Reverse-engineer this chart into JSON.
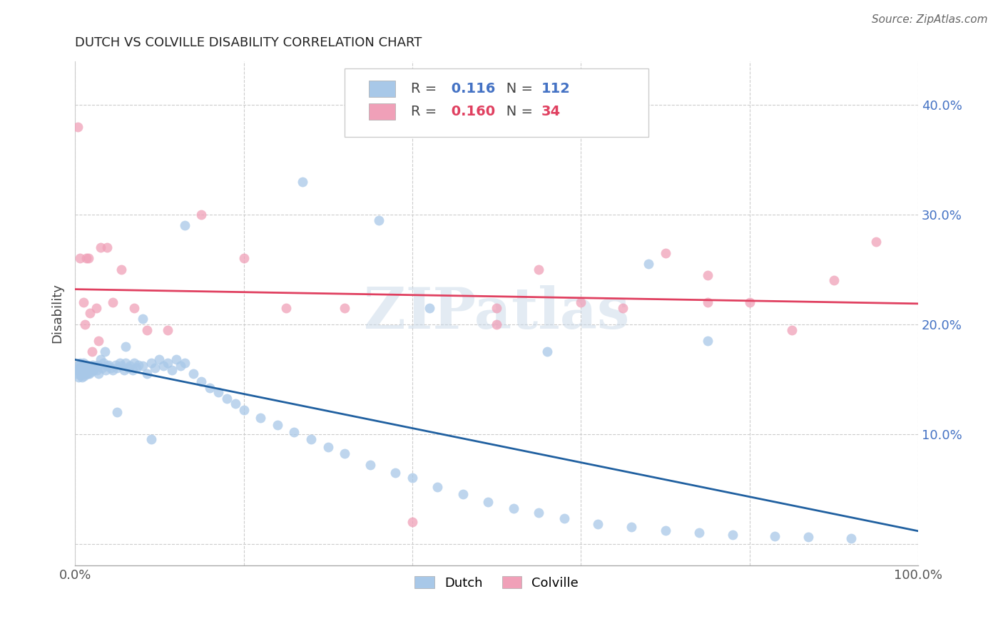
{
  "title": "DUTCH VS COLVILLE DISABILITY CORRELATION CHART",
  "source": "Source: ZipAtlas.com",
  "ylabel": "Disability",
  "ylim": [
    -0.02,
    0.44
  ],
  "xlim": [
    0.0,
    1.0
  ],
  "dutch_color": "#a8c8e8",
  "dutch_line_color": "#2060a0",
  "colville_color": "#f0a0b8",
  "colville_line_color": "#e04060",
  "dutch_R": 0.116,
  "dutch_N": 112,
  "colville_R": 0.16,
  "colville_N": 34,
  "dutch_scatter_x": [
    0.002,
    0.003,
    0.004,
    0.005,
    0.005,
    0.006,
    0.006,
    0.007,
    0.007,
    0.008,
    0.008,
    0.009,
    0.009,
    0.01,
    0.01,
    0.01,
    0.011,
    0.011,
    0.012,
    0.012,
    0.013,
    0.013,
    0.014,
    0.014,
    0.015,
    0.015,
    0.016,
    0.016,
    0.017,
    0.018,
    0.019,
    0.02,
    0.021,
    0.022,
    0.023,
    0.025,
    0.026,
    0.027,
    0.028,
    0.03,
    0.032,
    0.034,
    0.036,
    0.038,
    0.04,
    0.042,
    0.045,
    0.048,
    0.05,
    0.053,
    0.055,
    0.058,
    0.06,
    0.063,
    0.065,
    0.068,
    0.07,
    0.073,
    0.075,
    0.08,
    0.085,
    0.09,
    0.095,
    0.1,
    0.105,
    0.11,
    0.115,
    0.12,
    0.125,
    0.13,
    0.14,
    0.15,
    0.16,
    0.17,
    0.18,
    0.19,
    0.2,
    0.22,
    0.24,
    0.26,
    0.28,
    0.3,
    0.32,
    0.35,
    0.38,
    0.4,
    0.43,
    0.46,
    0.49,
    0.52,
    0.55,
    0.58,
    0.62,
    0.66,
    0.7,
    0.74,
    0.78,
    0.83,
    0.87,
    0.92,
    0.36,
    0.42,
    0.27,
    0.56,
    0.68,
    0.75,
    0.13,
    0.08,
    0.06,
    0.05,
    0.035,
    0.09
  ],
  "dutch_scatter_y": [
    0.155,
    0.158,
    0.152,
    0.16,
    0.163,
    0.157,
    0.165,
    0.154,
    0.16,
    0.152,
    0.158,
    0.156,
    0.162,
    0.155,
    0.16,
    0.165,
    0.153,
    0.158,
    0.16,
    0.162,
    0.155,
    0.158,
    0.157,
    0.163,
    0.155,
    0.16,
    0.158,
    0.162,
    0.155,
    0.158,
    0.162,
    0.157,
    0.163,
    0.158,
    0.16,
    0.162,
    0.158,
    0.163,
    0.155,
    0.168,
    0.16,
    0.165,
    0.158,
    0.162,
    0.163,
    0.16,
    0.158,
    0.163,
    0.16,
    0.165,
    0.162,
    0.158,
    0.165,
    0.16,
    0.162,
    0.158,
    0.165,
    0.16,
    0.163,
    0.162,
    0.155,
    0.165,
    0.16,
    0.168,
    0.162,
    0.165,
    0.158,
    0.168,
    0.162,
    0.165,
    0.155,
    0.148,
    0.142,
    0.138,
    0.132,
    0.128,
    0.122,
    0.115,
    0.108,
    0.102,
    0.095,
    0.088,
    0.082,
    0.072,
    0.065,
    0.06,
    0.052,
    0.045,
    0.038,
    0.032,
    0.028,
    0.023,
    0.018,
    0.015,
    0.012,
    0.01,
    0.008,
    0.007,
    0.006,
    0.005,
    0.295,
    0.215,
    0.33,
    0.175,
    0.255,
    0.185,
    0.29,
    0.205,
    0.18,
    0.12,
    0.175,
    0.095
  ],
  "colville_scatter_x": [
    0.003,
    0.006,
    0.01,
    0.013,
    0.016,
    0.02,
    0.025,
    0.03,
    0.038,
    0.045,
    0.055,
    0.07,
    0.085,
    0.11,
    0.15,
    0.2,
    0.25,
    0.32,
    0.4,
    0.5,
    0.55,
    0.6,
    0.65,
    0.7,
    0.75,
    0.8,
    0.85,
    0.9,
    0.95,
    0.012,
    0.018,
    0.028,
    0.5,
    0.75
  ],
  "colville_scatter_y": [
    0.38,
    0.26,
    0.22,
    0.26,
    0.26,
    0.175,
    0.215,
    0.27,
    0.27,
    0.22,
    0.25,
    0.215,
    0.195,
    0.195,
    0.3,
    0.26,
    0.215,
    0.215,
    0.02,
    0.215,
    0.25,
    0.22,
    0.215,
    0.265,
    0.22,
    0.22,
    0.195,
    0.24,
    0.275,
    0.2,
    0.21,
    0.185,
    0.2,
    0.245
  ],
  "watermark": "ZIPatlas",
  "ytick_color": "#4472c4",
  "legend_blue_color": "#4472c4",
  "legend_pink_color": "#e04060"
}
